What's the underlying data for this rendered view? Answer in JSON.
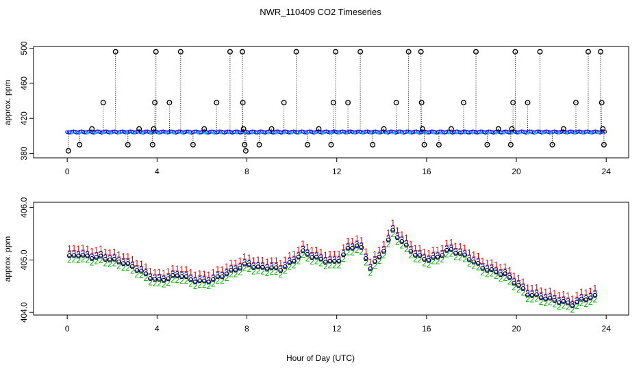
{
  "chart_data": [
    {
      "type": "scatter",
      "title": "NWR_110409  CO2 Timeseries",
      "xlabel": "",
      "ylabel": "approx. ppm",
      "xlim": [
        -1.5,
        25
      ],
      "ylim": [
        375,
        502
      ],
      "xticks": [
        0,
        4,
        8,
        12,
        16,
        20,
        24
      ],
      "yticks": [
        380,
        420,
        460,
        500
      ],
      "baseline": 404.5,
      "baseline_series": [
        {
          "name": "blue",
          "color": "#0000ff"
        },
        {
          "name": "cyan",
          "color": "#00c8c8"
        }
      ],
      "spikes": [
        {
          "x": 0.05,
          "y": 383
        },
        {
          "x": 0.55,
          "y": 390
        },
        {
          "x": 1.1,
          "y": 408
        },
        {
          "x": 1.6,
          "y": 438
        },
        {
          "x": 2.15,
          "y": 496
        },
        {
          "x": 2.7,
          "y": 390
        },
        {
          "x": 3.2,
          "y": 408
        },
        {
          "x": 3.8,
          "y": 390
        },
        {
          "x": 3.85,
          "y": 408
        },
        {
          "x": 3.9,
          "y": 438
        },
        {
          "x": 3.95,
          "y": 496
        },
        {
          "x": 4.55,
          "y": 438
        },
        {
          "x": 5.05,
          "y": 496
        },
        {
          "x": 5.6,
          "y": 390
        },
        {
          "x": 6.1,
          "y": 408
        },
        {
          "x": 6.65,
          "y": 438
        },
        {
          "x": 7.25,
          "y": 496
        },
        {
          "x": 7.8,
          "y": 496
        },
        {
          "x": 7.82,
          "y": 438
        },
        {
          "x": 7.85,
          "y": 408
        },
        {
          "x": 7.9,
          "y": 390
        },
        {
          "x": 7.95,
          "y": 383
        },
        {
          "x": 8.55,
          "y": 390
        },
        {
          "x": 9.1,
          "y": 408
        },
        {
          "x": 9.65,
          "y": 438
        },
        {
          "x": 10.2,
          "y": 496
        },
        {
          "x": 10.7,
          "y": 390
        },
        {
          "x": 11.2,
          "y": 408
        },
        {
          "x": 11.75,
          "y": 390
        },
        {
          "x": 11.85,
          "y": 438
        },
        {
          "x": 11.95,
          "y": 496
        },
        {
          "x": 12.5,
          "y": 438
        },
        {
          "x": 13.05,
          "y": 496
        },
        {
          "x": 13.6,
          "y": 390
        },
        {
          "x": 14.1,
          "y": 408
        },
        {
          "x": 14.65,
          "y": 438
        },
        {
          "x": 15.2,
          "y": 496
        },
        {
          "x": 15.75,
          "y": 496
        },
        {
          "x": 15.78,
          "y": 438
        },
        {
          "x": 15.82,
          "y": 408
        },
        {
          "x": 15.9,
          "y": 390
        },
        {
          "x": 16.55,
          "y": 390
        },
        {
          "x": 17.1,
          "y": 408
        },
        {
          "x": 17.65,
          "y": 438
        },
        {
          "x": 18.2,
          "y": 496
        },
        {
          "x": 18.7,
          "y": 390
        },
        {
          "x": 19.2,
          "y": 408
        },
        {
          "x": 19.75,
          "y": 390
        },
        {
          "x": 19.8,
          "y": 408
        },
        {
          "x": 19.85,
          "y": 438
        },
        {
          "x": 19.95,
          "y": 496
        },
        {
          "x": 20.5,
          "y": 438
        },
        {
          "x": 21.05,
          "y": 496
        },
        {
          "x": 21.6,
          "y": 390
        },
        {
          "x": 22.1,
          "y": 408
        },
        {
          "x": 22.65,
          "y": 438
        },
        {
          "x": 23.2,
          "y": 496
        },
        {
          "x": 23.75,
          "y": 496
        },
        {
          "x": 23.8,
          "y": 438
        },
        {
          "x": 23.85,
          "y": 408
        },
        {
          "x": 23.9,
          "y": 390
        }
      ]
    },
    {
      "type": "scatter",
      "title": "",
      "xlabel": "Hour of Day (UTC)",
      "ylabel": "approx. ppm",
      "xlim": [
        -1.5,
        25
      ],
      "ylim": [
        403.95,
        406.1
      ],
      "xticks": [
        0,
        4,
        8,
        12,
        16,
        20,
        24
      ],
      "yticks": [
        404.0,
        405.0,
        406.0
      ],
      "ytick_labels": [
        "404.0",
        "405.0",
        "406.0"
      ],
      "series": [
        {
          "name": "1",
          "color": "#e00000",
          "offset": 0.14
        },
        {
          "name": "2",
          "color": "#00b000",
          "offset": -0.08
        },
        {
          "name": "3",
          "color": "#0000e0",
          "offset": 0.03
        },
        {
          "name": "o",
          "color": "#000000",
          "offset": 0.0
        }
      ],
      "curve": [
        {
          "x": 0.0,
          "y": 405.05
        },
        {
          "x": 0.5,
          "y": 405.1
        },
        {
          "x": 1.0,
          "y": 405.05
        },
        {
          "x": 1.5,
          "y": 405.05
        },
        {
          "x": 2.0,
          "y": 405.0
        },
        {
          "x": 2.5,
          "y": 404.95
        },
        {
          "x": 3.0,
          "y": 404.85
        },
        {
          "x": 3.5,
          "y": 404.72
        },
        {
          "x": 4.0,
          "y": 404.6
        },
        {
          "x": 4.5,
          "y": 404.65
        },
        {
          "x": 5.0,
          "y": 404.72
        },
        {
          "x": 5.5,
          "y": 404.62
        },
        {
          "x": 6.0,
          "y": 404.58
        },
        {
          "x": 6.5,
          "y": 404.62
        },
        {
          "x": 7.0,
          "y": 404.72
        },
        {
          "x": 7.5,
          "y": 404.82
        },
        {
          "x": 8.0,
          "y": 404.92
        },
        {
          "x": 8.5,
          "y": 404.85
        },
        {
          "x": 9.0,
          "y": 404.85
        },
        {
          "x": 9.5,
          "y": 404.82
        },
        {
          "x": 10.0,
          "y": 404.95
        },
        {
          "x": 10.5,
          "y": 405.15
        },
        {
          "x": 11.0,
          "y": 405.05
        },
        {
          "x": 11.5,
          "y": 404.98
        },
        {
          "x": 12.0,
          "y": 404.95
        },
        {
          "x": 12.5,
          "y": 405.2
        },
        {
          "x": 13.0,
          "y": 405.3
        },
        {
          "x": 13.5,
          "y": 404.85
        },
        {
          "x": 14.0,
          "y": 405.1
        },
        {
          "x": 14.5,
          "y": 405.55
        },
        {
          "x": 15.0,
          "y": 405.3
        },
        {
          "x": 15.5,
          "y": 405.1
        },
        {
          "x": 16.0,
          "y": 405.0
        },
        {
          "x": 16.5,
          "y": 405.05
        },
        {
          "x": 17.0,
          "y": 405.2
        },
        {
          "x": 17.5,
          "y": 405.12
        },
        {
          "x": 18.0,
          "y": 405.0
        },
        {
          "x": 18.5,
          "y": 404.85
        },
        {
          "x": 19.0,
          "y": 404.78
        },
        {
          "x": 19.5,
          "y": 404.72
        },
        {
          "x": 20.0,
          "y": 404.55
        },
        {
          "x": 20.5,
          "y": 404.35
        },
        {
          "x": 21.0,
          "y": 404.3
        },
        {
          "x": 21.5,
          "y": 404.25
        },
        {
          "x": 22.0,
          "y": 404.2
        },
        {
          "x": 22.5,
          "y": 404.15
        },
        {
          "x": 23.0,
          "y": 404.25
        },
        {
          "x": 23.5,
          "y": 404.3
        }
      ]
    }
  ]
}
